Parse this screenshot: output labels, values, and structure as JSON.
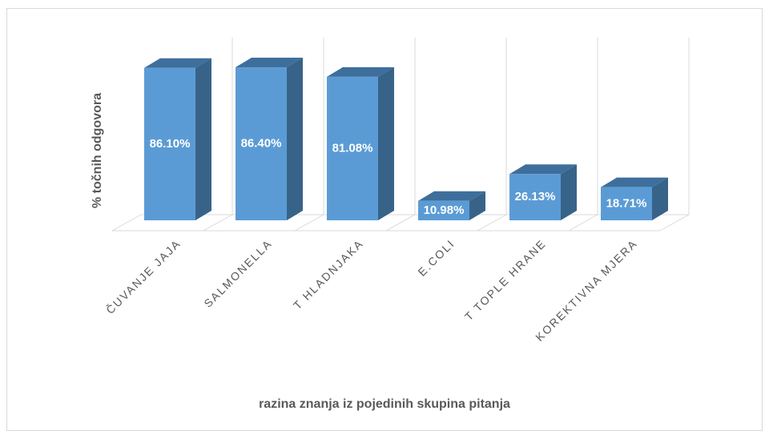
{
  "chart_data": {
    "type": "bar3d",
    "y_label": "% točnih odgovora",
    "x_label": "razina znanja iz pojedinih skupina pitanja",
    "categories": [
      "ČUVANJE JAJA",
      "SALMONELLA",
      "T HLADNJAKA",
      "E.COLI",
      "T TOPLE HRANE",
      "KOREKTIVNA MJERA"
    ],
    "values": [
      86.1,
      86.4,
      81.08,
      10.98,
      26.13,
      18.71
    ],
    "value_labels": [
      "86.10%",
      "86.40%",
      "81.08%",
      "10.98%",
      "26.13%",
      "18.71%"
    ],
    "color": "#5b9bd5",
    "ylim": [
      0,
      100
    ]
  }
}
